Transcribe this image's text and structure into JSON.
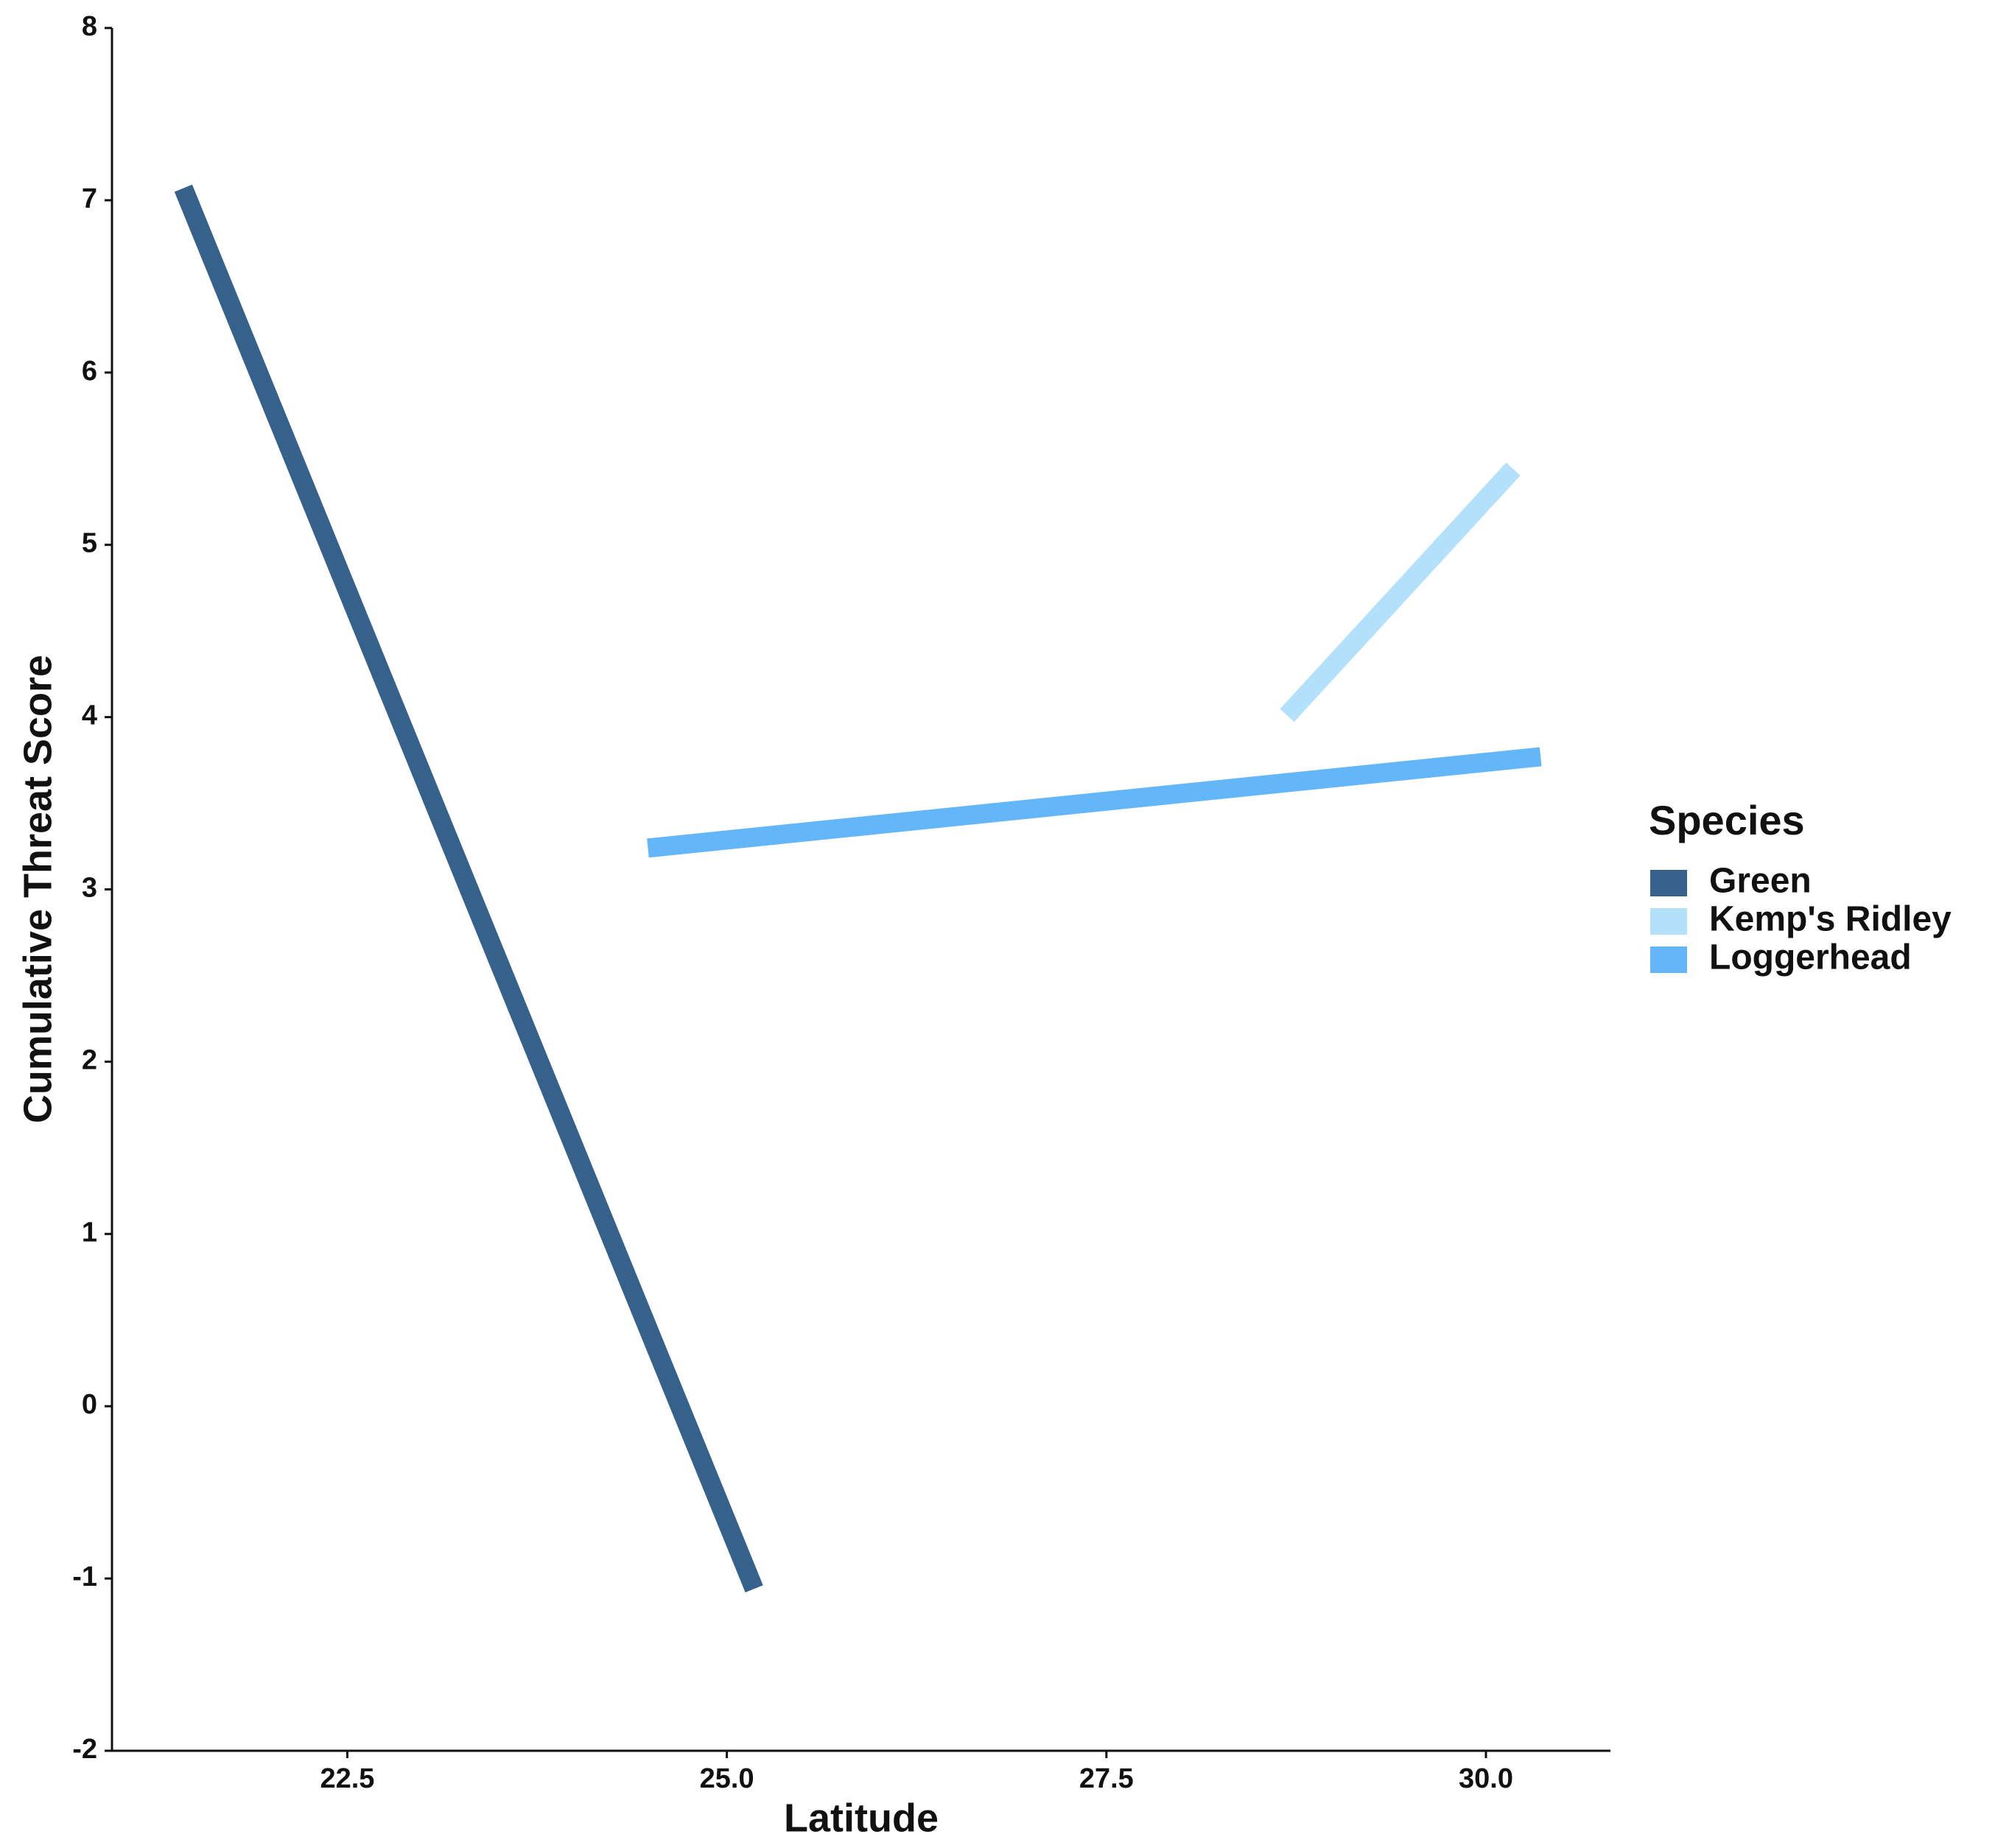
{
  "chart_data": {
    "type": "line",
    "x_label": "Latitude",
    "y_label": "Cumulative Threat Score",
    "legend_title": "Species",
    "legend": "right",
    "xlim": [
      20.95,
      30.82
    ],
    "ylim": [
      -2,
      8
    ],
    "xticks": [
      22.5,
      {
        "value": 25,
        "label": "25.0"
      },
      27.5,
      {
        "value": 30,
        "label": "30.0"
      }
    ],
    "yticks": [
      -2,
      -1,
      0,
      1,
      2,
      3,
      4,
      5,
      6,
      7,
      8
    ],
    "grid": false,
    "series": [
      {
        "name": "Green",
        "color": "#36618a",
        "x": [
          21.42,
          25.18
        ],
        "values": [
          7.07,
          -1.06
        ]
      },
      {
        "name": "Kemp's Ridley",
        "color": "#b3e0fb",
        "x": [
          28.69,
          30.18
        ],
        "values": [
          4.01,
          5.44
        ]
      },
      {
        "name": "Loggerhead",
        "color": "#63b6f8",
        "x": [
          24.48,
          30.36
        ],
        "values": [
          3.24,
          3.77
        ]
      }
    ]
  }
}
